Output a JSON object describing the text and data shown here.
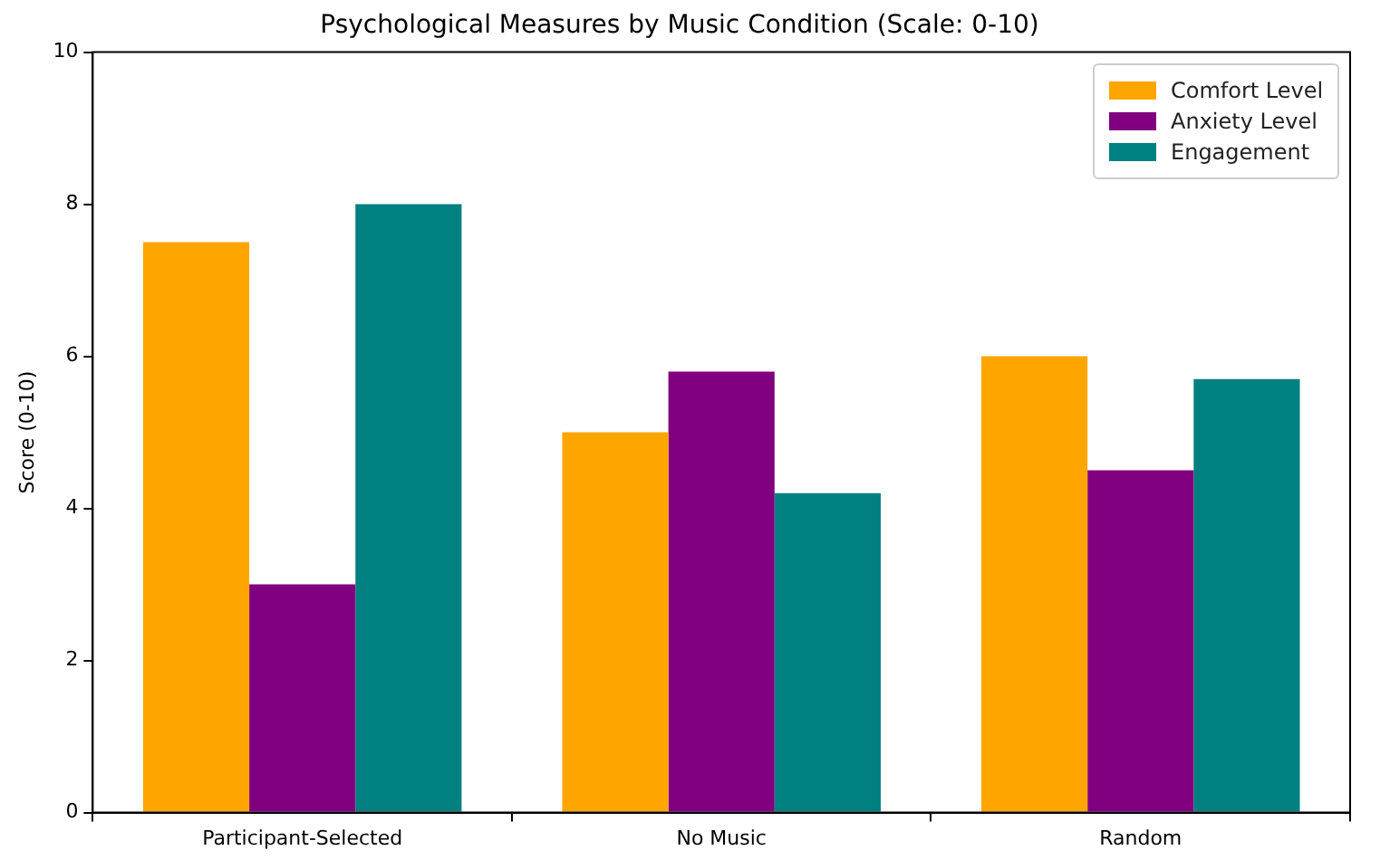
{
  "chart_data": {
    "type": "bar",
    "title": "Psychological Measures by Music Condition (Scale: 0-10)",
    "ylabel": "Score (0-10)",
    "categories": [
      "Participant-Selected",
      "No Music",
      "Random"
    ],
    "series": [
      {
        "name": "Comfort Level",
        "color": "#ffa500",
        "values": [
          7.5,
          5,
          6
        ]
      },
      {
        "name": "Anxiety Level",
        "color": "#800080",
        "values": [
          3,
          5.8,
          4.5
        ]
      },
      {
        "name": "Engagement",
        "color": "#008080",
        "values": [
          8,
          4.2,
          5.7
        ]
      }
    ],
    "ylim": [
      0,
      10
    ],
    "yticks": [
      0,
      2,
      4,
      6,
      8,
      10
    ],
    "legend": "top right"
  }
}
